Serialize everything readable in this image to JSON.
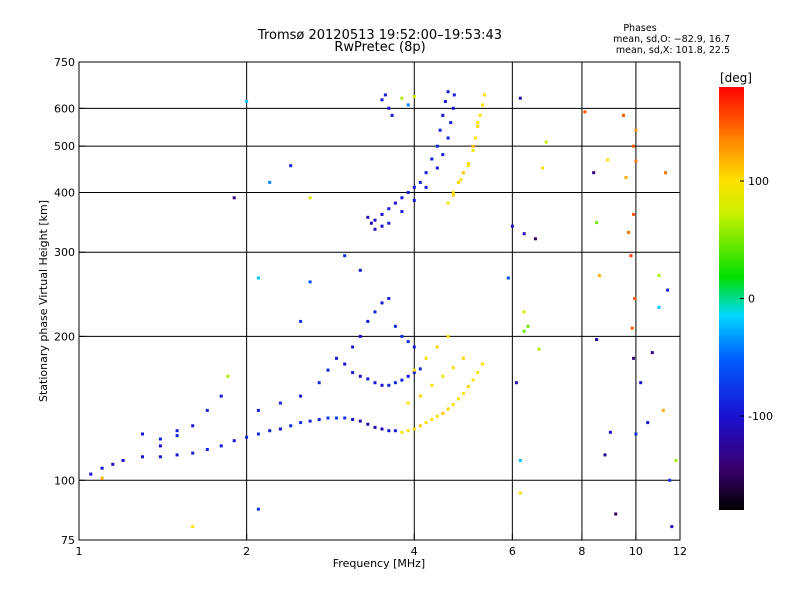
{
  "header": {
    "title": "Tromsø 20120513 19:52:00–19:53:43",
    "subtitle": "RwPretec (8p)",
    "phases_title": "Phases",
    "phases_line1": "mean, sd,O: −82.9, 16.7",
    "phases_line2": "mean, sd,X: 101.8, 22.5"
  },
  "colorbar": {
    "unit_label": "[deg]",
    "ticks": [
      100,
      0,
      -100
    ],
    "range": [
      -180,
      180
    ]
  },
  "chart_data": {
    "type": "scatter",
    "title": "Tromsø 20120513 19:52:00–19:53:43",
    "subtitle": "RwPretec (8p)",
    "xlabel": "Frequency [MHz]",
    "ylabel": "Stationary phase Virtual Height [km]",
    "x_scale": "log",
    "y_scale": "log",
    "xlim": [
      1,
      12
    ],
    "ylim": [
      75,
      750
    ],
    "x_ticks": [
      1,
      2,
      4,
      6,
      8,
      10,
      12
    ],
    "y_ticks": [
      75,
      100,
      200,
      300,
      400,
      500,
      600,
      750
    ],
    "x_grid": [
      2,
      4,
      6,
      8,
      10
    ],
    "y_grid": [
      100,
      200,
      300,
      400,
      500,
      600
    ],
    "series": [
      {
        "mode": "O",
        "phase_mean": -82.9,
        "points": [
          [
            1.05,
            103,
            -100
          ],
          [
            1.1,
            106,
            -105
          ],
          [
            1.15,
            108,
            -110
          ],
          [
            1.2,
            110,
            -105
          ],
          [
            1.3,
            112,
            -100
          ],
          [
            1.4,
            112,
            -95
          ],
          [
            1.5,
            113,
            -100
          ],
          [
            1.6,
            114,
            -95
          ],
          [
            1.7,
            116,
            -90
          ],
          [
            1.8,
            118,
            -95
          ],
          [
            1.9,
            121,
            -100
          ],
          [
            2.0,
            123,
            -90
          ],
          [
            2.1,
            125,
            -85
          ],
          [
            2.2,
            127,
            -90
          ],
          [
            2.3,
            128,
            -95
          ],
          [
            2.4,
            130,
            -85
          ],
          [
            2.5,
            132,
            -80
          ],
          [
            2.6,
            133,
            -90
          ],
          [
            2.7,
            134,
            -85
          ],
          [
            2.8,
            135,
            -75
          ],
          [
            2.9,
            135,
            -70
          ],
          [
            3.0,
            135,
            -80
          ],
          [
            3.1,
            134,
            -95
          ],
          [
            3.2,
            133,
            -110
          ],
          [
            3.3,
            131,
            -120
          ],
          [
            3.4,
            129,
            -115
          ],
          [
            3.5,
            128,
            -110
          ],
          [
            3.6,
            127,
            -95
          ],
          [
            3.7,
            127,
            -90
          ],
          [
            1.3,
            125,
            -95
          ],
          [
            1.4,
            122,
            -90
          ],
          [
            1.5,
            124,
            -85
          ],
          [
            1.6,
            130,
            -95
          ],
          [
            1.7,
            140,
            -90
          ],
          [
            1.8,
            150,
            -95
          ],
          [
            2.1,
            140,
            -90
          ],
          [
            2.3,
            145,
            -85
          ],
          [
            2.5,
            150,
            -90
          ],
          [
            2.7,
            160,
            -85
          ],
          [
            2.8,
            170,
            -90
          ],
          [
            2.9,
            180,
            -95
          ],
          [
            3.0,
            175,
            -100
          ],
          [
            3.1,
            168,
            -95
          ],
          [
            3.2,
            165,
            -105
          ],
          [
            3.3,
            163,
            -100
          ],
          [
            3.4,
            160,
            -95
          ],
          [
            3.5,
            158,
            -100
          ],
          [
            3.6,
            158,
            -90
          ],
          [
            3.7,
            160,
            -85
          ],
          [
            3.8,
            162,
            -90
          ],
          [
            3.9,
            165,
            -95
          ],
          [
            4.0,
            168,
            -90
          ],
          [
            4.1,
            171,
            -85
          ],
          [
            3.1,
            190,
            -95
          ],
          [
            3.2,
            200,
            -100
          ],
          [
            3.3,
            215,
            -95
          ],
          [
            3.4,
            225,
            -90
          ],
          [
            3.5,
            235,
            -95
          ],
          [
            3.6,
            240,
            -90
          ],
          [
            3.7,
            210,
            -85
          ],
          [
            3.8,
            200,
            -80
          ],
          [
            3.9,
            195,
            -85
          ],
          [
            4.0,
            190,
            -90
          ],
          [
            3.3,
            355,
            -110
          ],
          [
            3.35,
            345,
            -115
          ],
          [
            3.4,
            350,
            -105
          ],
          [
            3.5,
            360,
            -100
          ],
          [
            3.6,
            370,
            -95
          ],
          [
            3.7,
            380,
            -100
          ],
          [
            3.8,
            390,
            -95
          ],
          [
            3.9,
            400,
            -90
          ],
          [
            4.0,
            410,
            -95
          ],
          [
            4.1,
            420,
            -90
          ],
          [
            4.2,
            440,
            -95
          ],
          [
            4.3,
            470,
            -90
          ],
          [
            4.4,
            500,
            -85
          ],
          [
            4.45,
            540,
            -90
          ],
          [
            4.5,
            580,
            -95
          ],
          [
            4.55,
            620,
            -90
          ],
          [
            4.6,
            650,
            -95
          ],
          [
            3.4,
            335,
            -105
          ],
          [
            3.5,
            340,
            -100
          ],
          [
            3.6,
            345,
            -95
          ],
          [
            3.8,
            365,
            -90
          ],
          [
            4.0,
            385,
            -95
          ],
          [
            4.2,
            410,
            -90
          ],
          [
            4.4,
            450,
            -95
          ],
          [
            4.5,
            480,
            -90
          ],
          [
            4.6,
            520,
            -95
          ],
          [
            4.65,
            560,
            -90
          ],
          [
            4.7,
            600,
            -95
          ],
          [
            4.72,
            640,
            -90
          ],
          [
            3.5,
            625,
            -95
          ],
          [
            3.55,
            640,
            -90
          ],
          [
            3.6,
            600,
            -100
          ],
          [
            3.65,
            580,
            -95
          ]
        ]
      },
      {
        "mode": "X",
        "phase_mean": 101.8,
        "points": [
          [
            3.8,
            126,
            95
          ],
          [
            3.9,
            127,
            100
          ],
          [
            4.0,
            128,
            105
          ],
          [
            4.1,
            130,
            110
          ],
          [
            4.2,
            132,
            100
          ],
          [
            4.3,
            134,
            95
          ],
          [
            4.4,
            136,
            100
          ],
          [
            4.5,
            138,
            110
          ],
          [
            4.6,
            141,
            105
          ],
          [
            4.7,
            144,
            100
          ],
          [
            4.8,
            148,
            95
          ],
          [
            4.9,
            152,
            100
          ],
          [
            5.0,
            157,
            105
          ],
          [
            5.1,
            162,
            100
          ],
          [
            5.2,
            168,
            95
          ],
          [
            5.3,
            175,
            100
          ],
          [
            3.9,
            145,
            100
          ],
          [
            4.1,
            150,
            105
          ],
          [
            4.3,
            158,
            100
          ],
          [
            4.5,
            165,
            95
          ],
          [
            4.7,
            172,
            100
          ],
          [
            4.9,
            180,
            105
          ],
          [
            4.0,
            170,
            95
          ],
          [
            4.2,
            180,
            100
          ],
          [
            4.4,
            190,
            105
          ],
          [
            4.6,
            200,
            100
          ],
          [
            4.6,
            380,
            95
          ],
          [
            4.7,
            400,
            100
          ],
          [
            4.8,
            420,
            105
          ],
          [
            4.9,
            440,
            110
          ],
          [
            5.0,
            460,
            100
          ],
          [
            5.1,
            490,
            95
          ],
          [
            5.15,
            520,
            100
          ],
          [
            5.2,
            550,
            105
          ],
          [
            5.25,
            580,
            100
          ],
          [
            5.3,
            610,
            95
          ],
          [
            5.35,
            640,
            100
          ],
          [
            4.7,
            395,
            105
          ],
          [
            4.85,
            425,
            100
          ],
          [
            5.0,
            455,
            95
          ],
          [
            5.1,
            500,
            110
          ],
          [
            5.2,
            560,
            100
          ]
        ]
      },
      {
        "mode": "noise",
        "points": [
          [
            1.1,
            101,
            120
          ],
          [
            1.4,
            118,
            -100
          ],
          [
            1.5,
            127,
            -90
          ],
          [
            1.9,
            390,
            -140
          ],
          [
            2.0,
            620,
            -20
          ],
          [
            2.2,
            420,
            -40
          ],
          [
            2.4,
            455,
            -90
          ],
          [
            2.6,
            390,
            80
          ],
          [
            2.1,
            265,
            -20
          ],
          [
            2.5,
            215,
            -80
          ],
          [
            2.6,
            260,
            -60
          ],
          [
            1.85,
            165,
            60
          ],
          [
            1.6,
            80,
            100
          ],
          [
            2.1,
            87,
            -80
          ],
          [
            3.0,
            295,
            -80
          ],
          [
            3.2,
            275,
            -95
          ],
          [
            3.8,
            630,
            60
          ],
          [
            3.9,
            610,
            -40
          ],
          [
            4.0,
            635,
            80
          ],
          [
            6.2,
            630,
            -120
          ],
          [
            6.0,
            340,
            -100
          ],
          [
            5.9,
            265,
            -60
          ],
          [
            6.3,
            328,
            -110
          ],
          [
            6.6,
            320,
            -150
          ],
          [
            6.8,
            450,
            100
          ],
          [
            6.9,
            510,
            70
          ],
          [
            6.7,
            188,
            60
          ],
          [
            6.1,
            160,
            -120
          ],
          [
            6.3,
            205,
            40
          ],
          [
            6.2,
            110,
            -20
          ],
          [
            6.4,
            210,
            40
          ],
          [
            6.2,
            94,
            100
          ],
          [
            6.3,
            225,
            80
          ],
          [
            8.1,
            590,
            150
          ],
          [
            8.4,
            440,
            -140
          ],
          [
            8.5,
            346,
            40
          ],
          [
            8.6,
            268,
            120
          ],
          [
            8.5,
            197,
            -120
          ],
          [
            8.9,
            468,
            100
          ],
          [
            8.8,
            113,
            -120
          ],
          [
            9.0,
            126,
            -100
          ],
          [
            9.2,
            85,
            -150
          ],
          [
            9.5,
            580,
            150
          ],
          [
            9.6,
            430,
            120
          ],
          [
            9.7,
            330,
            140
          ],
          [
            9.8,
            295,
            160
          ],
          [
            9.85,
            208,
            150
          ],
          [
            9.9,
            180,
            -140
          ],
          [
            9.9,
            500,
            150
          ],
          [
            10.0,
            540,
            130
          ],
          [
            10.0,
            465,
            140
          ],
          [
            9.9,
            360,
            150
          ],
          [
            9.95,
            240,
            150
          ],
          [
            10.0,
            125,
            -80
          ],
          [
            10.2,
            160,
            -100
          ],
          [
            10.5,
            132,
            -100
          ],
          [
            10.7,
            185,
            -130
          ],
          [
            11.0,
            268,
            60
          ],
          [
            11.3,
            440,
            140
          ],
          [
            11.0,
            230,
            -20
          ],
          [
            11.5,
            100,
            -80
          ],
          [
            11.2,
            140,
            120
          ],
          [
            11.4,
            250,
            -90
          ],
          [
            11.8,
            110,
            60
          ],
          [
            11.6,
            80,
            -110
          ]
        ]
      }
    ]
  }
}
